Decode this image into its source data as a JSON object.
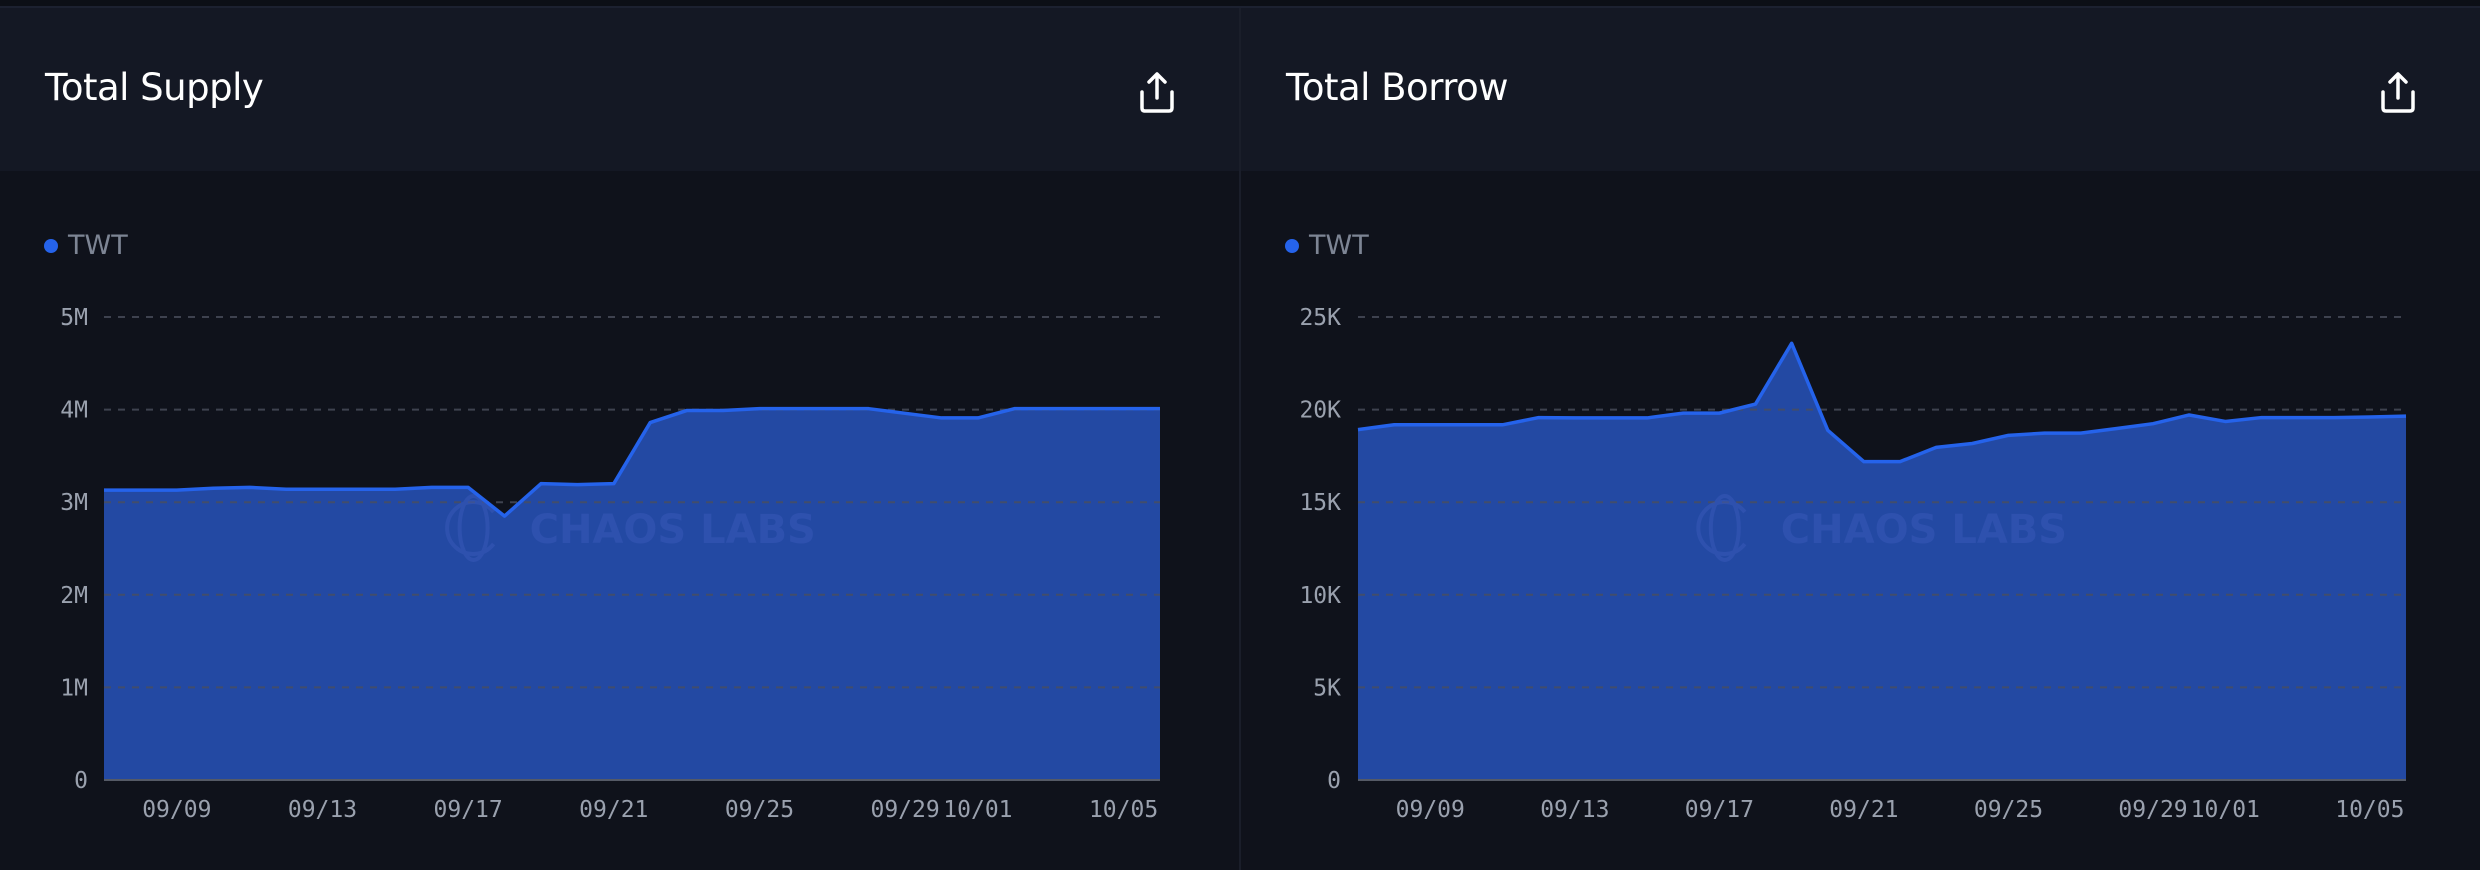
{
  "colors": {
    "series": "#2563eb",
    "fill": "#2349a3",
    "grid": "#4a4f5c"
  },
  "watermark": "CHAOS LABS",
  "chart_data": [
    {
      "type": "area",
      "title": "Total Supply",
      "legend": [
        "TWT"
      ],
      "legend_placement": "top-left",
      "ylim": [
        0,
        5000000
      ],
      "yticks": [
        0,
        1000000,
        2000000,
        3000000,
        4000000,
        5000000
      ],
      "ytick_labels": [
        "0",
        "1M",
        "2M",
        "3M",
        "4M",
        "5M"
      ],
      "xtick_labels": [
        "09/09",
        "09/13",
        "09/17",
        "09/21",
        "09/25",
        "09/29",
        "10/01",
        "10/05"
      ],
      "xtick_day_index": [
        2,
        6,
        10,
        14,
        18,
        22,
        24,
        28
      ],
      "x": [
        "09/07",
        "09/08",
        "09/09",
        "09/10",
        "09/11",
        "09/12",
        "09/13",
        "09/14",
        "09/15",
        "09/16",
        "09/17",
        "09/18",
        "09/19",
        "09/20",
        "09/21",
        "09/22",
        "09/23",
        "09/24",
        "09/25",
        "09/26",
        "09/27",
        "09/28",
        "09/29",
        "09/30",
        "10/01",
        "10/02",
        "10/03",
        "10/04",
        "10/05",
        "10/06"
      ],
      "series": [
        {
          "name": "TWT",
          "values": [
            3130000,
            3130000,
            3130000,
            3150000,
            3160000,
            3140000,
            3140000,
            3140000,
            3140000,
            3160000,
            3160000,
            2850000,
            3200000,
            3190000,
            3200000,
            3860000,
            3990000,
            3990000,
            4010000,
            4010000,
            4010000,
            4010000,
            3960000,
            3910000,
            3910000,
            4010000,
            4010000,
            4010000,
            4010000,
            4010000
          ]
        }
      ]
    },
    {
      "type": "area",
      "title": "Total Borrow",
      "legend": [
        "TWT"
      ],
      "legend_placement": "top-left",
      "ylim": [
        0,
        25000
      ],
      "yticks": [
        0,
        5000,
        10000,
        15000,
        20000,
        25000
      ],
      "ytick_labels": [
        "0",
        "5K",
        "10K",
        "15K",
        "20K",
        "25K"
      ],
      "xtick_labels": [
        "09/09",
        "09/13",
        "09/17",
        "09/21",
        "09/25",
        "09/29",
        "10/01",
        "10/05"
      ],
      "xtick_day_index": [
        2,
        6,
        10,
        14,
        18,
        22,
        24,
        28
      ],
      "x": [
        "09/07",
        "09/08",
        "09/09",
        "09/10",
        "09/11",
        "09/12",
        "09/13",
        "09/14",
        "09/15",
        "09/16",
        "09/17",
        "09/18",
        "09/19",
        "09/20",
        "09/21",
        "09/22",
        "09/23",
        "09/24",
        "09/25",
        "09/26",
        "09/27",
        "09/28",
        "09/29",
        "09/30",
        "10/01",
        "10/02",
        "10/03",
        "10/04",
        "10/05",
        "10/06"
      ],
      "series": [
        {
          "name": "TWT",
          "values": [
            18920,
            19180,
            19180,
            19180,
            19180,
            19570,
            19550,
            19550,
            19550,
            19810,
            19810,
            20300,
            23580,
            18880,
            17190,
            17190,
            17960,
            18170,
            18610,
            18730,
            18730,
            18980,
            19240,
            19710,
            19360,
            19570,
            19570,
            19570,
            19600,
            19650
          ]
        }
      ]
    }
  ]
}
